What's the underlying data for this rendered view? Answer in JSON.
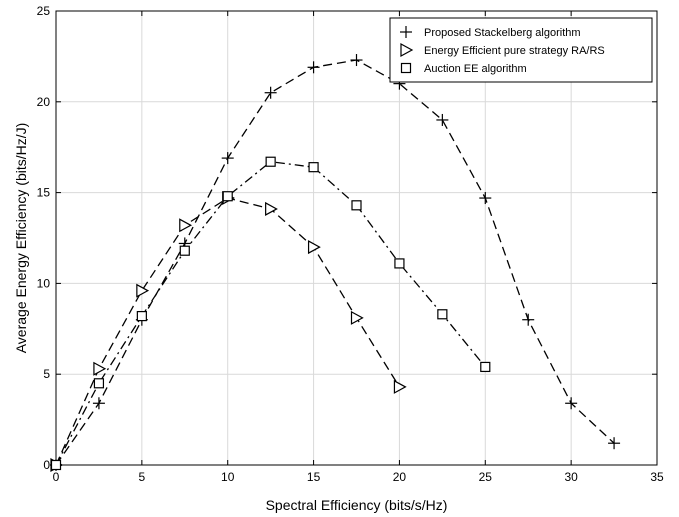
{
  "chart_data": {
    "type": "line",
    "title": "",
    "xlabel": "Spectral Efficiency (bits/s/Hz)",
    "ylabel": "Average Energy Efficiency (bits/Hz/J)",
    "xlim": [
      0,
      35
    ],
    "ylim": [
      0,
      25
    ],
    "xticks": [
      "0",
      "5",
      "10",
      "15",
      "20",
      "25",
      "30",
      "35"
    ],
    "yticks": [
      "0",
      "5",
      "10",
      "15",
      "20",
      "25"
    ],
    "grid": true,
    "legend_position": "top-right",
    "series": [
      {
        "name": "Proposed Stackelberg algorithm",
        "marker": "plus",
        "line_style": "dashed",
        "color": "#000000",
        "x": [
          0,
          2.5,
          5,
          7.5,
          10,
          12.5,
          15,
          17.5,
          20,
          22.5,
          25,
          27.5,
          30,
          32.5
        ],
        "y": [
          0,
          3.4,
          8.0,
          12.2,
          16.9,
          20.5,
          21.9,
          22.3,
          21.0,
          19.0,
          14.7,
          8.0,
          3.4,
          1.2
        ]
      },
      {
        "name": "Energy Efficient pure strategy RA/RS",
        "marker": "triangle-right",
        "line_style": "dashed",
        "color": "#000000",
        "x": [
          0,
          2.5,
          5,
          7.5,
          10,
          12.5,
          15,
          17.5,
          20
        ],
        "y": [
          0,
          5.3,
          9.6,
          13.2,
          14.7,
          14.1,
          12.0,
          8.1,
          4.3
        ]
      },
      {
        "name": "Auction EE algorithm",
        "marker": "square",
        "line_style": "dashdot",
        "color": "#000000",
        "x": [
          0,
          2.5,
          5,
          7.5,
          10,
          12.5,
          15,
          17.5,
          20,
          22.5,
          25
        ],
        "y": [
          0,
          4.5,
          8.2,
          11.8,
          14.8,
          16.7,
          16.4,
          14.3,
          11.1,
          8.3,
          5.4
        ]
      }
    ]
  }
}
